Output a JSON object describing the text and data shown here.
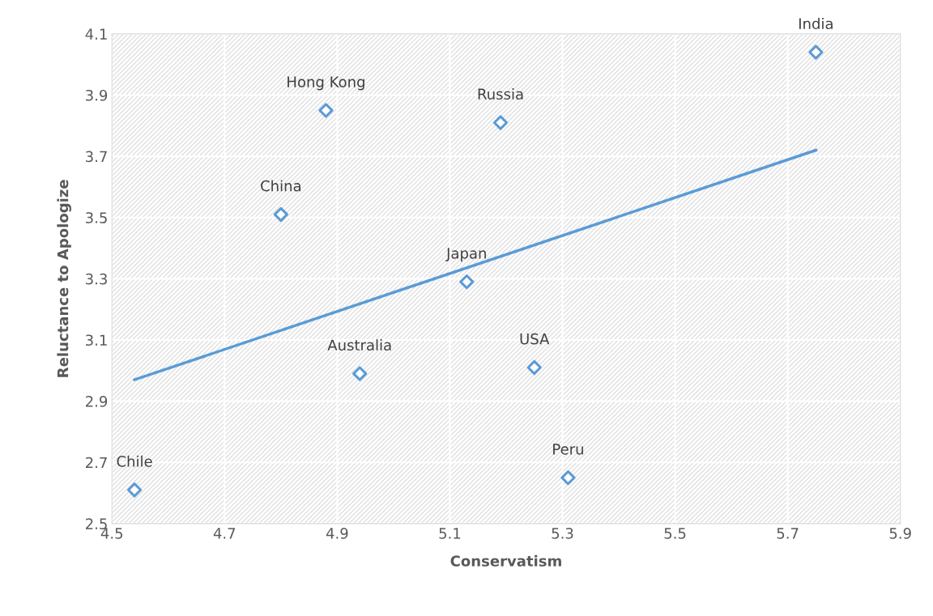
{
  "chart_data": {
    "type": "scatter",
    "xlabel": "Conservatism",
    "ylabel": "Reluctance to Apologize",
    "series": [
      {
        "color": "#5b9bd5",
        "marker": "diamond",
        "x": [
          5.75,
          4.88,
          5.19,
          4.8,
          5.13,
          4.94,
          5.25,
          5.31,
          4.54
        ],
        "values": [
          4.04,
          3.85,
          3.81,
          3.51,
          3.29,
          2.99,
          3.01,
          2.65,
          2.61
        ]
      },
      {
        "type": "line",
        "color": "#5b9bd5",
        "marker": "none",
        "line_style": "solid",
        "x": [
          4.54,
          5.75
        ],
        "values": [
          2.97,
          3.72
        ]
      }
    ],
    "annotations": [
      {
        "text": "India",
        "x": 5.75,
        "y": 4.04
      },
      {
        "text": "Hong Kong",
        "x": 4.88,
        "y": 3.85
      },
      {
        "text": "Russia",
        "x": 5.19,
        "y": 3.81
      },
      {
        "text": "China",
        "x": 4.8,
        "y": 3.51
      },
      {
        "text": "Japan",
        "x": 5.13,
        "y": 3.29
      },
      {
        "text": "Australia",
        "x": 4.94,
        "y": 2.99
      },
      {
        "text": "USA",
        "x": 5.25,
        "y": 3.01
      },
      {
        "text": "Peru",
        "x": 5.31,
        "y": 2.65
      },
      {
        "text": "Chile",
        "x": 4.54,
        "y": 2.61
      }
    ],
    "xlim": [
      4.5,
      5.9
    ],
    "xticks": [
      4.5,
      4.7,
      4.9,
      5.1,
      5.3,
      5.5,
      5.7,
      5.9
    ],
    "ylim": [
      2.5,
      4.1
    ],
    "yticks": [
      2.5,
      2.7,
      2.9,
      3.1,
      3.3,
      3.5,
      3.7,
      3.9,
      4.1
    ],
    "grid": true
  }
}
